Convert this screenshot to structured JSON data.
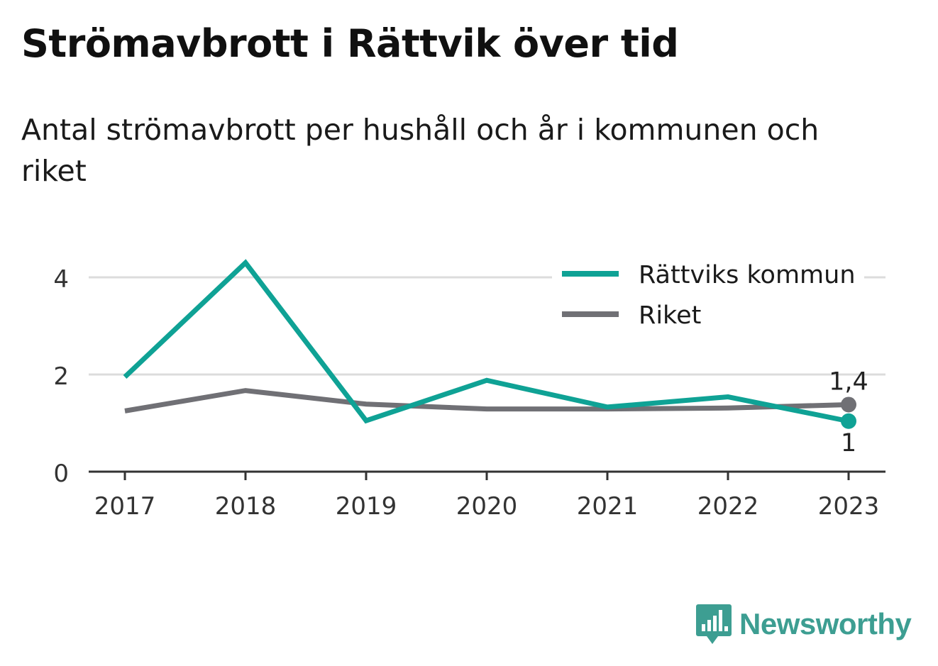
{
  "chart_data": {
    "type": "line",
    "title": "Strömavbrott i Rättvik över tid",
    "subtitle": "Antal strömavbrott per hushåll och år i kommunen och riket",
    "x": [
      "2017",
      "2018",
      "2019",
      "2020",
      "2021",
      "2022",
      "2023"
    ],
    "yticks": [
      "0",
      "2",
      "4"
    ],
    "ylim": [
      0,
      4.3
    ],
    "grid": true,
    "legend_position": "top-right",
    "series": [
      {
        "name": "Rättviks kommun",
        "color": "#0fa295",
        "values": [
          1.95,
          4.3,
          1.05,
          1.88,
          1.33,
          1.54,
          1.04
        ],
        "end_label": "1"
      },
      {
        "name": "Riket",
        "color": "#707075",
        "values": [
          1.25,
          1.67,
          1.39,
          1.29,
          1.29,
          1.31,
          1.38
        ],
        "end_label": "1,4"
      }
    ]
  },
  "brand": {
    "name": "Newsworthy",
    "logo_icon": "bar-chart-speech-bubble-icon",
    "color": "#3d9e92"
  }
}
